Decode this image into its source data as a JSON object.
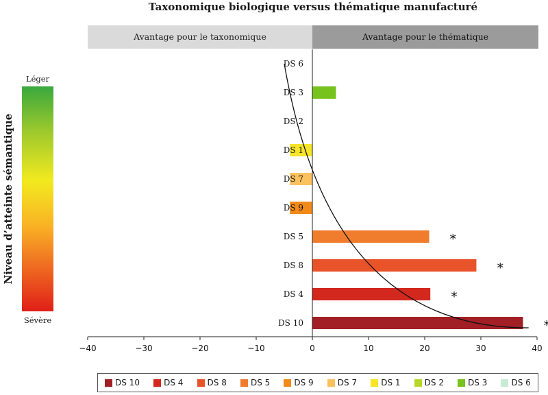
{
  "chart_data": {
    "type": "bar",
    "orientation": "horizontal",
    "title": "Taxonomique biologique versus thématique manufacturé",
    "xlabel": "",
    "ylabel": "Niveau d’atteinte sémantique",
    "xlim": [
      -40,
      40
    ],
    "xticks": [
      "−40",
      "−30",
      "−20",
      "−10",
      "0",
      "10",
      "20",
      "30",
      "40"
    ],
    "bands": {
      "left": "Avantage pour le taxonomique",
      "right": "Avantage pour le thématique"
    },
    "scale_labels": {
      "top": "Léger",
      "bottom": "Sévère"
    },
    "categories": [
      "DS 6",
      "DS 3",
      "DS 2",
      "DS 1",
      "DS 7",
      "DS 9",
      "DS 5",
      "DS 8",
      "DS 4",
      "DS 10"
    ],
    "values": [
      0,
      4.2,
      0,
      -4,
      -4,
      -4,
      20.8,
      29.2,
      21,
      37.5
    ],
    "significance": [
      "",
      "",
      "",
      "",
      "",
      "",
      "*",
      "*",
      "*",
      "*"
    ],
    "colors": [
      "#c6ecd4",
      "#78c21d",
      "#b6d82a",
      "#f6e428",
      "#fac15e",
      "#f18a18",
      "#f07c2e",
      "#e8532a",
      "#d3281e",
      "#a11f25"
    ],
    "trend_curve": true,
    "grid": false,
    "legend_position": "bottom",
    "legend": [
      {
        "label": "DS 10",
        "color": "#a11f25"
      },
      {
        "label": "DS 4",
        "color": "#d3281e"
      },
      {
        "label": "DS 8",
        "color": "#e8532a"
      },
      {
        "label": "DS 5",
        "color": "#f07c2e"
      },
      {
        "label": "DS 9",
        "color": "#f18a18"
      },
      {
        "label": "DS 7",
        "color": "#fac15e"
      },
      {
        "label": "DS 1",
        "color": "#f6e428"
      },
      {
        "label": "DS 2",
        "color": "#b6d82a"
      },
      {
        "label": "DS 3",
        "color": "#78c21d"
      },
      {
        "label": "DS 6",
        "color": "#c6ecd4"
      }
    ]
  }
}
